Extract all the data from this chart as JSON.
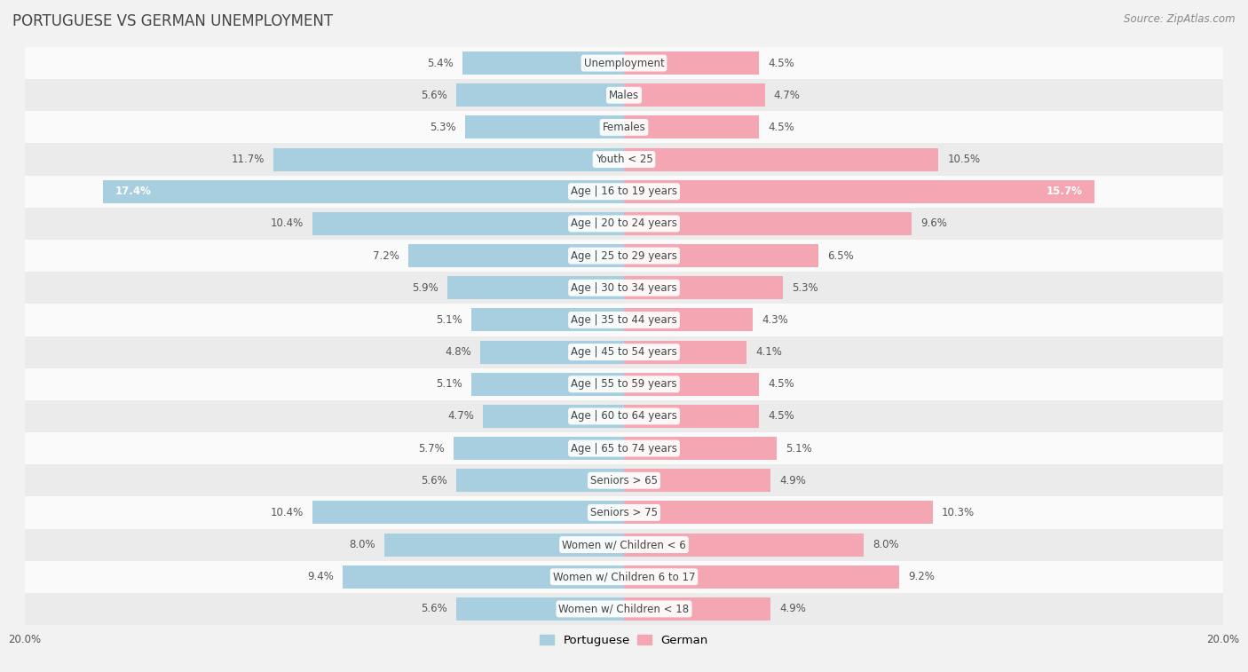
{
  "title": "PORTUGUESE VS GERMAN UNEMPLOYMENT",
  "source": "Source: ZipAtlas.com",
  "categories": [
    "Unemployment",
    "Males",
    "Females",
    "Youth < 25",
    "Age | 16 to 19 years",
    "Age | 20 to 24 years",
    "Age | 25 to 29 years",
    "Age | 30 to 34 years",
    "Age | 35 to 44 years",
    "Age | 45 to 54 years",
    "Age | 55 to 59 years",
    "Age | 60 to 64 years",
    "Age | 65 to 74 years",
    "Seniors > 65",
    "Seniors > 75",
    "Women w/ Children < 6",
    "Women w/ Children 6 to 17",
    "Women w/ Children < 18"
  ],
  "portuguese": [
    5.4,
    5.6,
    5.3,
    11.7,
    17.4,
    10.4,
    7.2,
    5.9,
    5.1,
    4.8,
    5.1,
    4.7,
    5.7,
    5.6,
    10.4,
    8.0,
    9.4,
    5.6
  ],
  "german": [
    4.5,
    4.7,
    4.5,
    10.5,
    15.7,
    9.6,
    6.5,
    5.3,
    4.3,
    4.1,
    4.5,
    4.5,
    5.1,
    4.9,
    10.3,
    8.0,
    9.2,
    4.9
  ],
  "portuguese_color": "#a8cfe0",
  "german_color": "#f4a7b2",
  "axis_max": 20.0,
  "bg_color": "#f2f2f2",
  "row_color_light": "#fafafa",
  "row_color_dark": "#ebebeb",
  "bar_height": 0.72,
  "title_fontsize": 12,
  "label_fontsize": 8.5,
  "value_fontsize": 8.5,
  "legend_fontsize": 9.5,
  "source_fontsize": 8.5,
  "inside_threshold": 14.0,
  "label_bg_color": "white"
}
